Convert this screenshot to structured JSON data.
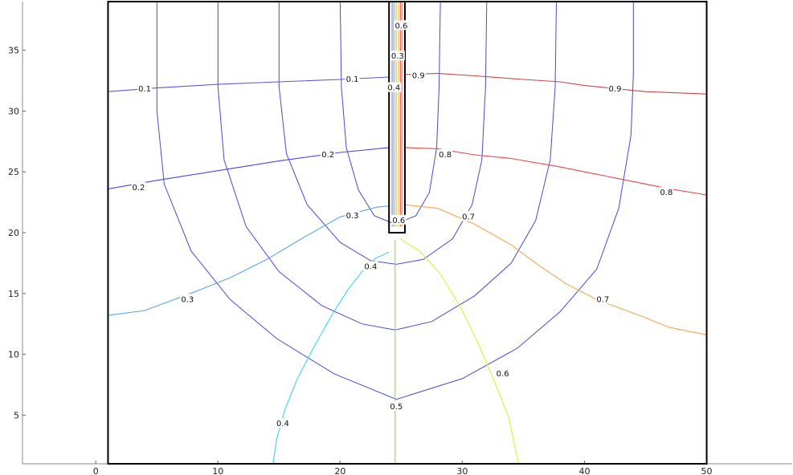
{
  "chart_data": {
    "type": "contour",
    "title": "",
    "xlabel": "",
    "ylabel": "",
    "xlim": [
      -6,
      57
    ],
    "ylim": [
      1,
      39
    ],
    "x_ticks": [
      0,
      10,
      20,
      30,
      40,
      50
    ],
    "y_ticks": [
      5,
      10,
      15,
      20,
      25,
      30,
      35
    ],
    "x_tick_labels": [
      "0",
      "10",
      "20",
      "30",
      "40",
      "50"
    ],
    "y_tick_labels": [
      "5",
      "10",
      "15",
      "20",
      "25",
      "30",
      "35"
    ],
    "grid": false,
    "legend": "none",
    "domain_box": {
      "x": [
        1,
        50
      ],
      "y": [
        1,
        39
      ]
    },
    "slot_box": {
      "x": [
        24,
        25.3
      ],
      "y": [
        20,
        39
      ]
    },
    "contour_levels": [
      {
        "level": "0.1",
        "color": "#5a5ad6",
        "points": [
          [
            1,
            31.6
          ],
          [
            5,
            31.9
          ],
          [
            10,
            32.2
          ],
          [
            15,
            32.4
          ],
          [
            20,
            32.6
          ],
          [
            24,
            32.8
          ]
        ]
      },
      {
        "level": "0.2",
        "color": "#4a4ad8",
        "points": [
          [
            1,
            23.6
          ],
          [
            5,
            24.3
          ],
          [
            10,
            25.1
          ],
          [
            15,
            25.9
          ],
          [
            20,
            26.6
          ],
          [
            24,
            27
          ]
        ]
      },
      {
        "level": "0.3",
        "color": "#5aa6e6",
        "points": [
          [
            1,
            13.2
          ],
          [
            4,
            13.6
          ],
          [
            8,
            15.1
          ],
          [
            11,
            16.3
          ],
          [
            14,
            17.8
          ],
          [
            17,
            19.6
          ],
          [
            20,
            21.3
          ],
          [
            23,
            22.1
          ],
          [
            24,
            22.2
          ]
        ]
      },
      {
        "level": "0.4",
        "color": "#39d6ea",
        "points": [
          [
            14.5,
            1
          ],
          [
            14.8,
            3
          ],
          [
            15.5,
            5.5
          ],
          [
            16.5,
            8
          ],
          [
            17.8,
            10.5
          ],
          [
            19.3,
            13.2
          ],
          [
            20.7,
            15.4
          ],
          [
            21.8,
            16.8
          ],
          [
            22.9,
            17.9
          ],
          [
            24,
            18.4
          ]
        ]
      },
      {
        "level": "0.5",
        "color": "#8ed85a",
        "points": [
          [
            24.5,
            1
          ],
          [
            24.5,
            5
          ],
          [
            24.5,
            10
          ],
          [
            24.5,
            15
          ],
          [
            24.5,
            19.4
          ]
        ]
      },
      {
        "level": "0.6",
        "color": "#e8e83a",
        "points": [
          [
            24.9,
            19.5
          ],
          [
            26.5,
            18.5
          ],
          [
            28.2,
            16.6
          ],
          [
            29.9,
            13.8
          ],
          [
            31.4,
            10.7
          ],
          [
            32.7,
            7.6
          ],
          [
            33.8,
            4.8
          ],
          [
            34.6,
            1
          ]
        ]
      },
      {
        "level": "0.7",
        "color": "#f2a54a",
        "points": [
          [
            25.3,
            22.3
          ],
          [
            28,
            22
          ],
          [
            31,
            20.7
          ],
          [
            34,
            19
          ],
          [
            36,
            17.5
          ],
          [
            38.5,
            15.8
          ],
          [
            41,
            14.5
          ],
          [
            44.5,
            13.2
          ],
          [
            47,
            12.2
          ],
          [
            50,
            11.6
          ]
        ]
      },
      {
        "level": "0.8",
        "color": "#e04a4a",
        "points": [
          [
            25.3,
            27
          ],
          [
            28,
            26.9
          ],
          [
            31,
            26.4
          ],
          [
            34,
            26.1
          ],
          [
            38,
            25.4
          ],
          [
            41,
            24.8
          ],
          [
            44,
            24.2
          ],
          [
            47,
            23.6
          ],
          [
            50,
            23.1
          ]
        ]
      },
      {
        "level": "0.9",
        "color": "#c24a4a",
        "points": [
          [
            25.3,
            33
          ],
          [
            28,
            33.1
          ],
          [
            31,
            32.9
          ],
          [
            35,
            32.6
          ],
          [
            38,
            32.4
          ],
          [
            40,
            32.1
          ],
          [
            42,
            31.9
          ],
          [
            45,
            31.6
          ],
          [
            50,
            31.4
          ]
        ]
      }
    ],
    "stream_lines": [
      {
        "color": "#4a4ad0",
        "points": [
          [
            5,
            39
          ],
          [
            5,
            30
          ],
          [
            5.6,
            24
          ],
          [
            7.8,
            18.5
          ],
          [
            11,
            14.5
          ],
          [
            14.8,
            11.3
          ],
          [
            19.5,
            8.4
          ],
          [
            24.6,
            6.3
          ],
          [
            30,
            8
          ],
          [
            34.5,
            10.5
          ],
          [
            38,
            13.5
          ],
          [
            41,
            17
          ],
          [
            42.8,
            22
          ],
          [
            43.8,
            28
          ],
          [
            44,
            33
          ],
          [
            44,
            39
          ]
        ]
      },
      {
        "color": "#4a4ad0",
        "points": [
          [
            10,
            39
          ],
          [
            10,
            32
          ],
          [
            10.5,
            26
          ],
          [
            12.3,
            20.5
          ],
          [
            15,
            16.8
          ],
          [
            18.5,
            14
          ],
          [
            21.8,
            12.5
          ],
          [
            24.5,
            12
          ],
          [
            27.5,
            12.7
          ],
          [
            31,
            14.8
          ],
          [
            34,
            17.5
          ],
          [
            36,
            21
          ],
          [
            37.2,
            26
          ],
          [
            37.6,
            32
          ],
          [
            37.7,
            39
          ]
        ]
      },
      {
        "color": "#4a4ad0",
        "points": [
          [
            15,
            39
          ],
          [
            15,
            32
          ],
          [
            15.6,
            26.5
          ],
          [
            17.3,
            22.3
          ],
          [
            20,
            19.2
          ],
          [
            22.5,
            17.7
          ],
          [
            24.6,
            17.4
          ],
          [
            26.8,
            17.8
          ],
          [
            29.2,
            19.5
          ],
          [
            30.8,
            22.3
          ],
          [
            31.6,
            26
          ],
          [
            31.9,
            32
          ],
          [
            32,
            39
          ]
        ]
      },
      {
        "color": "#4a4ad0",
        "points": [
          [
            20,
            39
          ],
          [
            20.1,
            32
          ],
          [
            20.5,
            27
          ],
          [
            21.5,
            23.5
          ],
          [
            22.8,
            21.4
          ],
          [
            24.5,
            20.7
          ],
          [
            26.2,
            21.4
          ],
          [
            27.3,
            23.3
          ],
          [
            27.9,
            27
          ],
          [
            28.1,
            32
          ],
          [
            28.2,
            39
          ]
        ]
      }
    ],
    "contour_labels": [
      {
        "text": "0.1",
        "x": 4,
        "y": 31.8
      },
      {
        "text": "0.1",
        "x": 21,
        "y": 32.6
      },
      {
        "text": "0.2",
        "x": 3.5,
        "y": 23.7
      },
      {
        "text": "0.2",
        "x": 19,
        "y": 26.4
      },
      {
        "text": "0.3",
        "x": 7.5,
        "y": 14.5
      },
      {
        "text": "0.3",
        "x": 21,
        "y": 21.4
      },
      {
        "text": "0.4",
        "x": 22.5,
        "y": 17.2
      },
      {
        "text": "0.4",
        "x": 15.3,
        "y": 4.3
      },
      {
        "text": "0.5",
        "x": 24.6,
        "y": 5.7
      },
      {
        "text": "0.6",
        "x": 33.3,
        "y": 8.4
      },
      {
        "text": "0.7",
        "x": 30.5,
        "y": 21.3
      },
      {
        "text": "0.7",
        "x": 41.5,
        "y": 14.5
      },
      {
        "text": "0.8",
        "x": 28.6,
        "y": 26.4
      },
      {
        "text": "0.8",
        "x": 46.7,
        "y": 23.3
      },
      {
        "text": "0.9",
        "x": 26.4,
        "y": 32.9
      },
      {
        "text": "0.9",
        "x": 42.5,
        "y": 31.8
      },
      {
        "text": "0.4",
        "x": 24.4,
        "y": 31.9
      },
      {
        "text": "0.3",
        "x": 24.7,
        "y": 34.5
      },
      {
        "text": "0.6",
        "x": 25,
        "y": 37
      },
      {
        "text": "0.6",
        "x": 24.8,
        "y": 21
      }
    ]
  }
}
